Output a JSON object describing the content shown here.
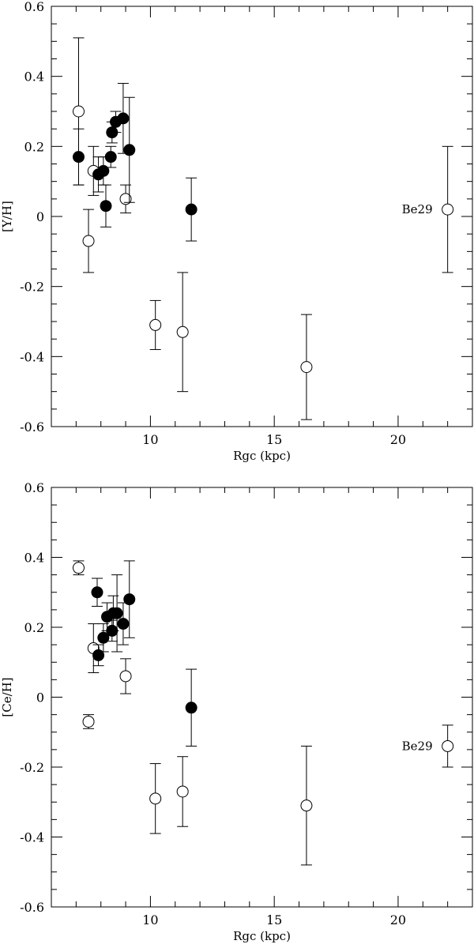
{
  "chart_data": [
    {
      "type": "scatter",
      "title": "",
      "xlabel": "Rgc (kpc)",
      "ylabel": "[Y/H]",
      "xlim": [
        6,
        23
      ],
      "ylim": [
        -0.6,
        0.6
      ],
      "xticks": [
        10,
        15,
        20
      ],
      "yticks": [
        -0.6,
        -0.4,
        -0.2,
        0,
        0.2,
        0.4,
        0.6
      ],
      "ytick_labels": [
        "-0.6",
        "-0.4",
        "-0.2",
        "0",
        "0.2",
        "0.4",
        "0.6"
      ],
      "grid": false,
      "annotations": [
        {
          "text": "Be29",
          "x": 22.0,
          "y": 0.02
        }
      ],
      "series": [
        {
          "marker": "open-circle",
          "points": [
            {
              "x": 7.1,
              "y": 0.3,
              "err": 0.21
            },
            {
              "x": 7.5,
              "y": -0.07,
              "err": 0.09
            },
            {
              "x": 7.7,
              "y": 0.13,
              "err": 0.07
            },
            {
              "x": 9.0,
              "y": 0.05,
              "err": 0.04
            },
            {
              "x": 10.2,
              "y": -0.31,
              "err": 0.07
            },
            {
              "x": 11.3,
              "y": -0.33,
              "err": 0.17
            },
            {
              "x": 16.3,
              "y": -0.43,
              "err": 0.15
            },
            {
              "x": 22.0,
              "y": 0.02,
              "err": 0.18
            }
          ]
        },
        {
          "marker": "filled-circle",
          "points": [
            {
              "x": 7.1,
              "y": 0.17,
              "err": 0.08
            },
            {
              "x": 7.9,
              "y": 0.12,
              "err": 0.05
            },
            {
              "x": 8.1,
              "y": 0.13,
              "err": 0.04
            },
            {
              "x": 8.2,
              "y": 0.03,
              "err": 0.06
            },
            {
              "x": 8.4,
              "y": 0.17,
              "err": 0.03
            },
            {
              "x": 8.45,
              "y": 0.24,
              "err": 0.03
            },
            {
              "x": 8.6,
              "y": 0.27,
              "err": 0.03
            },
            {
              "x": 8.9,
              "y": 0.28,
              "err": 0.1
            },
            {
              "x": 9.15,
              "y": 0.19,
              "err": 0.15
            },
            {
              "x": 11.65,
              "y": 0.02,
              "err": 0.09
            }
          ]
        }
      ]
    },
    {
      "type": "scatter",
      "title": "",
      "xlabel": "Rgc (kpc)",
      "ylabel": "[Ce/H]",
      "xlim": [
        6,
        23
      ],
      "ylim": [
        -0.6,
        0.6
      ],
      "xticks": [
        10,
        15,
        20
      ],
      "yticks": [
        -0.6,
        -0.4,
        -0.2,
        0,
        0.2,
        0.4,
        0.6
      ],
      "ytick_labels": [
        "-0.6",
        "-0.4",
        "-0.2",
        "0",
        "0.2",
        "0.4",
        "0.6"
      ],
      "grid": false,
      "annotations": [
        {
          "text": "Be29",
          "x": 22.0,
          "y": -0.14
        }
      ],
      "series": [
        {
          "marker": "open-circle",
          "points": [
            {
              "x": 7.1,
              "y": 0.37,
              "err": 0.02
            },
            {
              "x": 7.5,
              "y": -0.07,
              "err": 0.02
            },
            {
              "x": 7.7,
              "y": 0.14,
              "err": 0.07
            },
            {
              "x": 9.0,
              "y": 0.06,
              "err": 0.05
            },
            {
              "x": 10.2,
              "y": -0.29,
              "err": 0.1
            },
            {
              "x": 11.3,
              "y": -0.27,
              "err": 0.1
            },
            {
              "x": 16.3,
              "y": -0.31,
              "err": 0.17
            },
            {
              "x": 22.0,
              "y": -0.14,
              "err": 0.06
            }
          ]
        },
        {
          "marker": "filled-circle",
          "points": [
            {
              "x": 7.85,
              "y": 0.3,
              "err": 0.04
            },
            {
              "x": 7.9,
              "y": 0.12,
              "err": 0.03
            },
            {
              "x": 8.1,
              "y": 0.17,
              "err": 0.04
            },
            {
              "x": 8.25,
              "y": 0.23,
              "err": 0.04
            },
            {
              "x": 8.45,
              "y": 0.19,
              "err": 0.03
            },
            {
              "x": 8.5,
              "y": 0.24,
              "err": 0.05
            },
            {
              "x": 8.65,
              "y": 0.24,
              "err": 0.11
            },
            {
              "x": 8.9,
              "y": 0.21,
              "err": 0.06
            },
            {
              "x": 9.15,
              "y": 0.28,
              "err": 0.11
            },
            {
              "x": 11.65,
              "y": -0.03,
              "err": 0.11
            }
          ]
        }
      ]
    }
  ]
}
